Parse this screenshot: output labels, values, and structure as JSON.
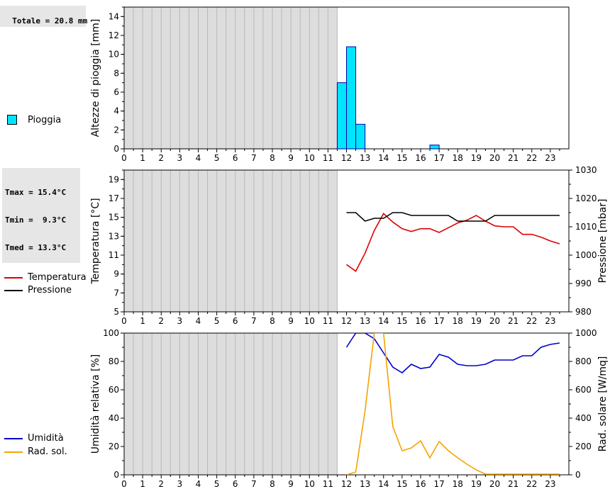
{
  "stats": {
    "rain_total": "Totale = 20.8 mm",
    "tmax": "Tmax = 15.4°C",
    "tmin": "Tmin =  9.3°C",
    "tmed": "Tmed = 13.3°C"
  },
  "legends": {
    "rain": "Pioggia",
    "temperature": "Temperatura",
    "pressure": "Pressione",
    "humidity": "Umidità",
    "radiation": "Rad. sol."
  },
  "colors": {
    "rain": "#00e5ff",
    "temperature": "#dd0000",
    "pressure": "#000000",
    "humidity": "#0000cc",
    "radiation": "#f5a300",
    "no_data": "#dddddd"
  },
  "chart_data": [
    {
      "type": "bar",
      "ylabel": "Altezze di pioggia [mm]",
      "ylim": [
        0,
        15
      ],
      "yticks": [
        0,
        2,
        4,
        6,
        8,
        10,
        12,
        14
      ],
      "xticks": [
        "0",
        "1",
        "2",
        "3",
        "4",
        "5",
        "6",
        "7",
        "8",
        "9",
        "10",
        "11",
        "12",
        "13",
        "14",
        "15",
        "16",
        "17",
        "18",
        "19",
        "20",
        "21",
        "22",
        "23"
      ],
      "xlim": [
        0,
        24
      ],
      "no_data_until": 11.5,
      "bar_width": 0.5,
      "series": [
        {
          "name": "Pioggia",
          "x": [
            11.75,
            12.25,
            12.75,
            16.75
          ],
          "values": [
            7.0,
            10.8,
            2.6,
            0.4
          ]
        }
      ]
    },
    {
      "type": "line",
      "ylabel": "Temperatura [°C]",
      "y2label": "Pressione [mbar]",
      "ylim": [
        5,
        20
      ],
      "yticks": [
        5,
        7,
        9,
        11,
        13,
        15,
        17,
        19
      ],
      "y2lim": [
        980,
        1030
      ],
      "y2ticks": [
        980,
        990,
        1000,
        1010,
        1020,
        1030
      ],
      "xticks": [
        "0",
        "1",
        "2",
        "3",
        "4",
        "5",
        "6",
        "7",
        "8",
        "9",
        "10",
        "11",
        "12",
        "13",
        "14",
        "15",
        "16",
        "17",
        "18",
        "19",
        "20",
        "21",
        "22",
        "23"
      ],
      "xlim": [
        0,
        24
      ],
      "no_data_until": 11.5,
      "series": [
        {
          "name": "Temperatura",
          "axis": "left",
          "x": [
            12,
            12.5,
            13,
            13.5,
            14,
            14.5,
            15,
            15.5,
            16,
            16.5,
            17,
            17.5,
            18,
            18.5,
            19,
            19.5,
            20,
            20.5,
            21,
            21.5,
            22,
            22.5,
            23,
            23.5
          ],
          "values": [
            10.0,
            9.3,
            11.2,
            13.6,
            15.4,
            14.5,
            13.8,
            13.5,
            13.8,
            13.8,
            13.4,
            13.9,
            14.4,
            14.7,
            15.2,
            14.6,
            14.1,
            14.0,
            14.0,
            13.2,
            13.2,
            12.9,
            12.5,
            12.2
          ]
        },
        {
          "name": "Pressione",
          "axis": "right",
          "x": [
            12,
            12.5,
            13,
            13.5,
            14,
            14.5,
            15,
            15.5,
            16,
            16.5,
            17,
            17.5,
            18,
            18.5,
            19,
            19.5,
            20,
            20.5,
            21,
            21.5,
            22,
            22.5,
            23,
            23.5
          ],
          "values": [
            1015,
            1015,
            1012,
            1013,
            1013,
            1015,
            1015,
            1014,
            1014,
            1014,
            1014,
            1014,
            1012,
            1012,
            1012,
            1012,
            1014,
            1014,
            1014,
            1014,
            1014,
            1014,
            1014,
            1014
          ]
        }
      ]
    },
    {
      "type": "line",
      "ylabel": "Umidità relativa [%]",
      "y2label": "Rad. solare [W/mq]",
      "ylim": [
        0,
        100
      ],
      "yticks": [
        0,
        20,
        40,
        60,
        80,
        100
      ],
      "y2lim": [
        0,
        1000
      ],
      "y2ticks": [
        0,
        200,
        400,
        600,
        800,
        1000
      ],
      "xticks": [
        "0",
        "1",
        "2",
        "3",
        "4",
        "5",
        "6",
        "7",
        "8",
        "9",
        "10",
        "11",
        "12",
        "13",
        "14",
        "15",
        "16",
        "17",
        "18",
        "19",
        "20",
        "21",
        "22",
        "23"
      ],
      "xlim": [
        0,
        24
      ],
      "no_data_until": 11.5,
      "series": [
        {
          "name": "Umidità",
          "axis": "left",
          "x": [
            12,
            12.5,
            13,
            13.5,
            14,
            14.5,
            15,
            15.5,
            16,
            16.5,
            17,
            17.5,
            18,
            18.5,
            19,
            19.5,
            20,
            20.5,
            21,
            21.5,
            22,
            22.5,
            23,
            23.5
          ],
          "values": [
            90,
            100,
            100,
            96,
            86,
            76,
            72,
            78,
            75,
            76,
            85,
            83,
            78,
            77,
            77,
            78,
            81,
            81,
            81,
            84,
            84,
            90,
            92,
            93
          ]
        },
        {
          "name": "Rad. sol.",
          "axis": "right",
          "x": [
            12,
            12.5,
            13,
            13.5,
            14,
            14.5,
            15,
            15.5,
            16,
            16.5,
            17,
            17.5,
            18,
            18.5,
            19,
            19.5,
            20,
            20.5,
            21,
            21.5,
            22,
            22.5,
            23,
            23.5
          ],
          "values": [
            0,
            20,
            450,
            1000,
            1000,
            340,
            170,
            190,
            240,
            120,
            235,
            170,
            120,
            75,
            35,
            5,
            5,
            5,
            5,
            5,
            5,
            5,
            5,
            5
          ]
        }
      ]
    }
  ]
}
